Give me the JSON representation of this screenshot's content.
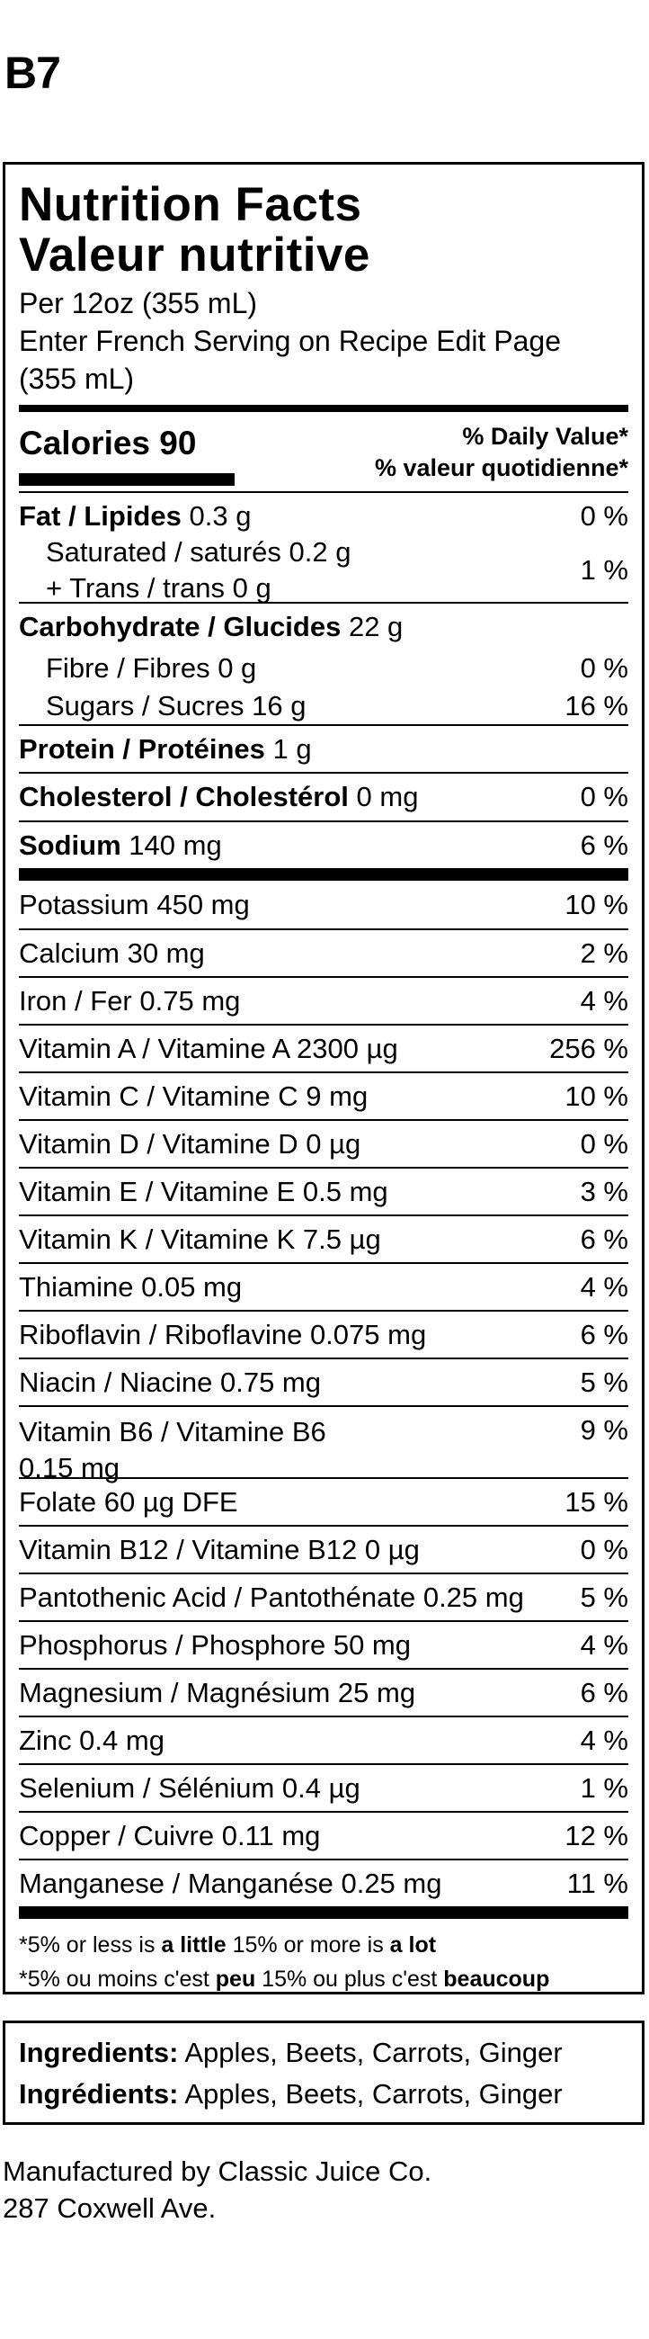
{
  "page_title": "B7",
  "label": {
    "title_en": "Nutrition Facts",
    "title_fr": "Valeur nutritive",
    "serving_lines": [
      "Per 12oz (355 mL)",
      "Enter French Serving on Recipe Edit Page",
      "(355 mL)"
    ],
    "calories_label": "Calories 90",
    "dv_header_en": "% Daily Value*",
    "dv_header_fr": "% valeur quotidienne*",
    "fat": {
      "name": "Fat / Lipides",
      "amount": "0.3 g",
      "pct": "0 %",
      "saturated": "Saturated / saturés 0.2 g",
      "trans": "+ Trans / trans 0 g",
      "sat_trans_pct": "1 %"
    },
    "carb": {
      "name": "Carbohydrate / Glucides",
      "amount": "22 g",
      "fibre": "Fibre / Fibres 0 g",
      "fibre_pct": "0 %",
      "sugars": "Sugars / Sucres 16 g",
      "sugars_pct": "16 %"
    },
    "protein": {
      "name": "Protein / Protéines",
      "amount": "1 g"
    },
    "cholesterol": {
      "name": "Cholesterol / Cholestérol",
      "amount": "0 mg",
      "pct": "0 %"
    },
    "sodium": {
      "name": "Sodium",
      "amount": "140 mg",
      "pct": "6 %"
    },
    "micros": [
      {
        "label": "Potassium 450 mg",
        "pct": "10 %"
      },
      {
        "label": "Calcium 30 mg",
        "pct": "2 %"
      },
      {
        "label": "Iron / Fer 0.75 mg",
        "pct": "4 %"
      },
      {
        "label": "Vitamin A / Vitamine A 2300 µg",
        "pct": "256 %"
      },
      {
        "label": "Vitamin C / Vitamine C 9 mg",
        "pct": "10 %"
      },
      {
        "label": "Vitamin D / Vitamine D 0 µg",
        "pct": "0 %"
      },
      {
        "label": "Vitamin E / Vitamine E 0.5 mg",
        "pct": "3 %"
      },
      {
        "label": "Vitamin K / Vitamine K 7.5 µg",
        "pct": "6 %"
      },
      {
        "label": "Thiamine 0.05 mg",
        "pct": "4 %"
      },
      {
        "label": "Riboflavin / Riboflavine 0.075 mg",
        "pct": "6 %"
      },
      {
        "label": "Niacin / Niacine 0.75 mg",
        "pct": "5 %"
      }
    ],
    "b6": {
      "line1": "Vitamin B6 / Vitamine B6",
      "line2": "0.15 mg",
      "pct": "9 %"
    },
    "micros2": [
      {
        "label": "Folate 60 µg DFE",
        "pct": "15 %"
      },
      {
        "label": "Vitamin B12 / Vitamine B12 0 µg",
        "pct": "0 %"
      },
      {
        "label": "Pantothenic Acid / Pantothénate 0.25 mg",
        "pct": "5 %"
      },
      {
        "label": "Phosphorus / Phosphore 50 mg",
        "pct": "4 %"
      },
      {
        "label": "Magnesium / Magnésium 25 mg",
        "pct": "6 %"
      },
      {
        "label": "Zinc 0.4 mg",
        "pct": "4 %"
      },
      {
        "label": "Selenium / Sélénium 0.4 µg",
        "pct": "1 %"
      },
      {
        "label": "Copper / Cuivre 0.11 mg",
        "pct": "12 %"
      },
      {
        "label": "Manganese / Manganése 0.25 mg",
        "pct": "11 %"
      }
    ],
    "footnote_en": {
      "a": "*5% or less is ",
      "b": "a little",
      "c": " 15% or more is ",
      "d": "a lot"
    },
    "footnote_fr": {
      "a": "*5% ou moins c'est ",
      "b": "peu",
      "c": " 15% ou plus c'est ",
      "d": "beaucoup"
    }
  },
  "ingredients": {
    "label_en": "Ingredients:",
    "text_en": "Apples, Beets, Carrots, Ginger",
    "label_fr": "Ingrédients:",
    "text_fr": "Apples, Beets, Carrots, Ginger"
  },
  "manufacturer": {
    "line1": "Manufactured by Classic Juice Co.",
    "line2": "287 Coxwell Ave."
  }
}
